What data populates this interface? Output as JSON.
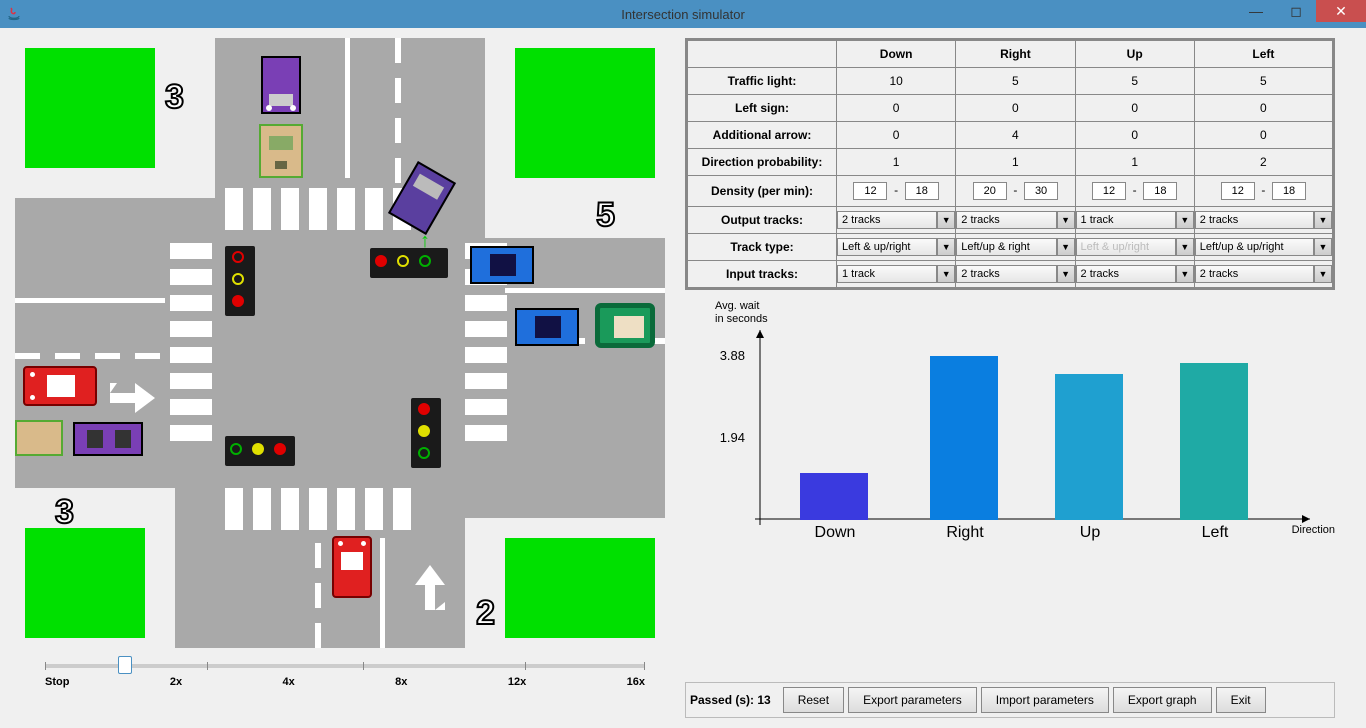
{
  "window": {
    "title": "Intersection simulator"
  },
  "simulation": {
    "corner_numbers": {
      "top_left": "3",
      "top_right": "5",
      "bottom_left": "3",
      "bottom_right": "2"
    },
    "slider": {
      "labels": [
        "Stop",
        "2x",
        "4x",
        "8x",
        "12x",
        "16x"
      ],
      "position_pct": 13
    }
  },
  "table": {
    "columns": [
      "Down",
      "Right",
      "Up",
      "Left"
    ],
    "rows": [
      {
        "label": "Traffic light:",
        "values": [
          "10",
          "5",
          "5",
          "5"
        ]
      },
      {
        "label": "Left sign:",
        "values": [
          "0",
          "0",
          "0",
          "0"
        ]
      },
      {
        "label": "Additional arrow:",
        "values": [
          "0",
          "4",
          "0",
          "0"
        ]
      },
      {
        "label": "Direction probability:",
        "values": [
          "1",
          "1",
          "1",
          "2"
        ]
      }
    ],
    "density": {
      "label": "Density (per min):",
      "ranges": [
        {
          "min": "12",
          "max": "18"
        },
        {
          "min": "20",
          "max": "30"
        },
        {
          "min": "12",
          "max": "18"
        },
        {
          "min": "12",
          "max": "18"
        }
      ]
    },
    "output_tracks": {
      "label": "Output tracks:",
      "values": [
        "2 tracks",
        "2 tracks",
        "1 track",
        "2 tracks"
      ]
    },
    "track_type": {
      "label": "Track type:",
      "values": [
        "Left & up/right",
        "Left/up & right",
        "Left & up/right",
        "Left/up & up/right"
      ],
      "disabled_index": 2
    },
    "input_tracks": {
      "label": "Input tracks:",
      "values": [
        "1 track",
        "2 tracks",
        "2 tracks",
        "2 tracks"
      ]
    }
  },
  "chart": {
    "ylabel_line1": "Avg. wait",
    "ylabel_line2": "in seconds",
    "xlabel": "Direction",
    "ylim": [
      0,
      4.2
    ],
    "yticks": [
      "3.88",
      "1.94"
    ],
    "categories": [
      "Down",
      "Right",
      "Up",
      "Left"
    ],
    "values": [
      1.1,
      3.88,
      3.45,
      3.7
    ],
    "bar_colors": [
      "#3a3adf",
      "#0a7ee0",
      "#1fa0d0",
      "#1faaa5"
    ],
    "background": "#f0f0f0"
  },
  "bottom": {
    "passed_label": "Passed (s): 13",
    "buttons": [
      "Reset",
      "Export parameters",
      "Import parameters",
      "Export graph",
      "Exit"
    ]
  }
}
